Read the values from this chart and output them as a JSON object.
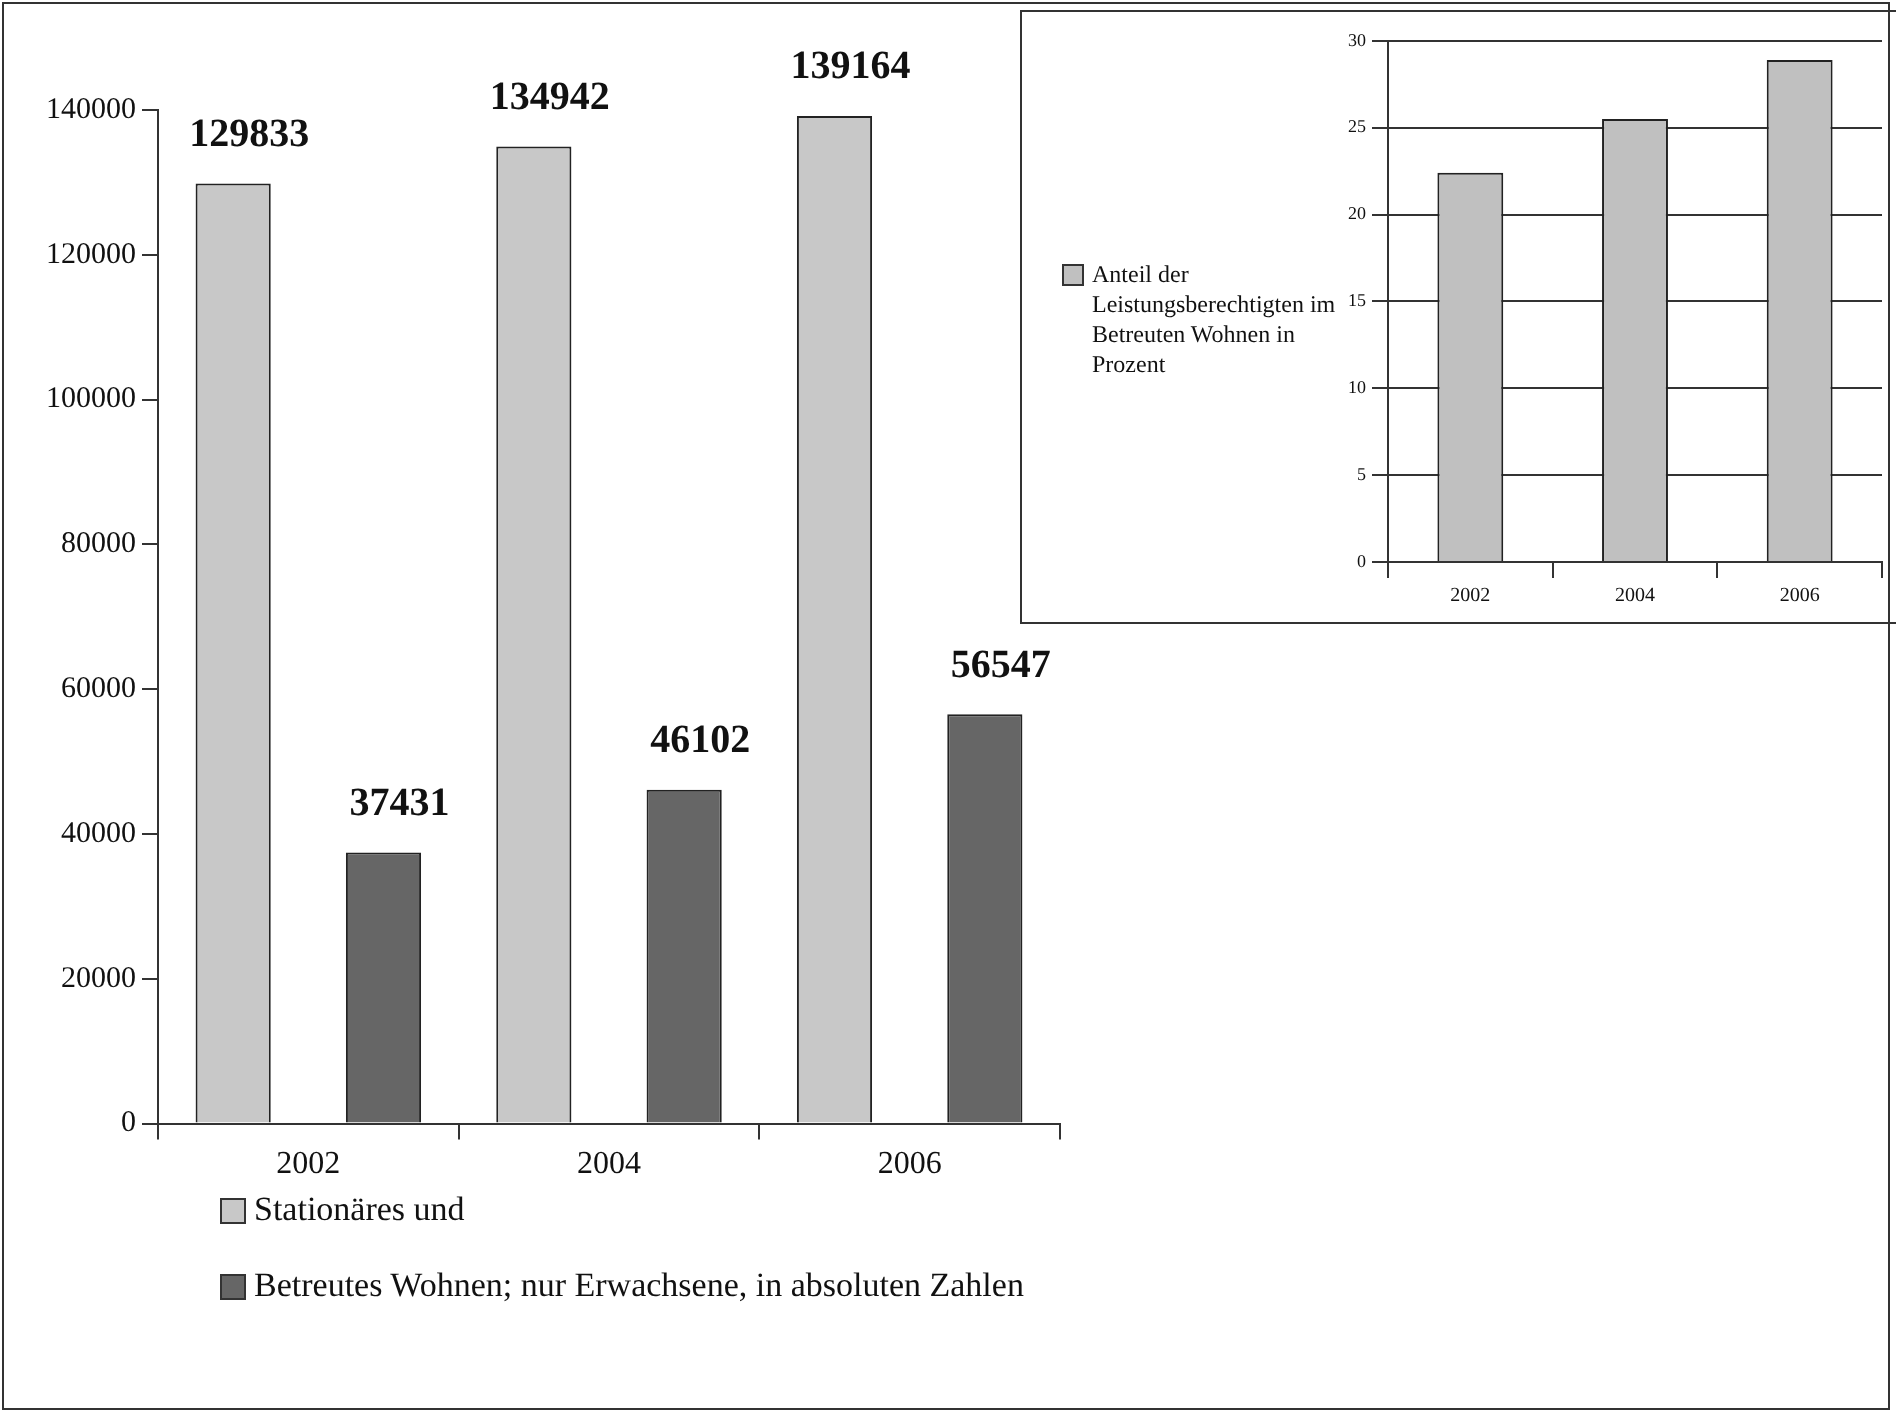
{
  "chart_data": [
    {
      "type": "bar",
      "categories": [
        "2002",
        "2004",
        "2006"
      ],
      "series": [
        {
          "name": "Stationäres und",
          "color": "#c8c8c8",
          "values": [
            129833,
            134942,
            139164
          ]
        },
        {
          "name": "Betreutes Wohnen; nur Erwachsene, in absoluten Zahlen",
          "color": "#666666",
          "values": [
            37431,
            46102,
            56547
          ]
        }
      ],
      "ylim": [
        0,
        140000
      ],
      "yticks": [
        0,
        20000,
        40000,
        60000,
        80000,
        100000,
        120000,
        140000
      ],
      "data_labels": true,
      "legend": "bottom"
    },
    {
      "type": "bar",
      "categories": [
        "2002",
        "2004",
        "2006"
      ],
      "series": [
        {
          "name": "Anteil der Leistungsberechtigten im Betreuten Wohnen in Prozent",
          "color": "#c0c0c0",
          "values": [
            22.4,
            25.5,
            28.9
          ]
        }
      ],
      "ylim": [
        0,
        30
      ],
      "yticks": [
        0,
        5,
        10,
        15,
        20,
        25,
        30
      ],
      "grid": "y",
      "legend": "left"
    }
  ]
}
